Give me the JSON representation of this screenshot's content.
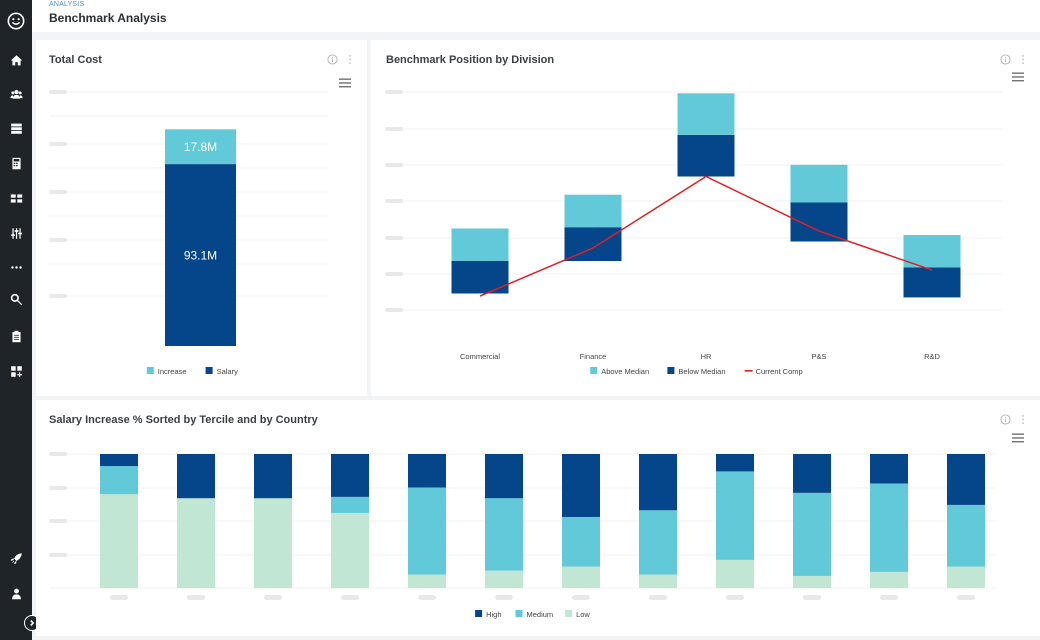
{
  "header": {
    "breadcrumb": "ANALYSIS",
    "title": "Benchmark Analysis"
  },
  "sidebar": {
    "items": [
      {
        "icon": "smiley-logo-icon"
      },
      {
        "icon": "home-icon"
      },
      {
        "icon": "people-icon"
      },
      {
        "icon": "server-icon"
      },
      {
        "icon": "calculator-icon"
      },
      {
        "icon": "grid-layout-icon"
      },
      {
        "icon": "sliders-icon"
      },
      {
        "icon": "more-dots-icon"
      },
      {
        "icon": "magnify-wrench-icon"
      },
      {
        "icon": "clipboard-icon"
      },
      {
        "icon": "dashboard-add-icon"
      },
      {
        "icon": "rocket-icon"
      },
      {
        "icon": "user-icon"
      }
    ]
  },
  "colors": {
    "salary": "#05468a",
    "increase": "#62c9d9",
    "low": "#c1e6d4",
    "line": "#e01f24"
  },
  "cards": {
    "total_cost": {
      "title": "Total Cost"
    },
    "benchmark": {
      "title": "Benchmark Position by Division"
    },
    "salary_increase": {
      "title": "Salary Increase % Sorted by Tercile and by Country"
    }
  },
  "chart_data": [
    {
      "id": "total_cost",
      "type": "bar",
      "title": "Total Cost",
      "categories": [
        ""
      ],
      "series": [
        {
          "name": "Salary",
          "values": [
            93.1
          ],
          "label": "93.1M",
          "color": "#05468a"
        },
        {
          "name": "Increase",
          "values": [
            17.8
          ],
          "label": "17.8M",
          "color": "#62c9d9"
        }
      ],
      "legend": [
        "Increase",
        "Salary"
      ],
      "ylim": [
        0,
        130
      ]
    },
    {
      "id": "benchmark",
      "type": "bar",
      "title": "Benchmark Position by Division",
      "categories": [
        "Commercial",
        "Finance",
        "HR",
        "P&S",
        "R&D"
      ],
      "series": [
        {
          "name": "Above Median",
          "color": "#62c9d9",
          "low": [
            0.0,
            0.26,
            0.97,
            0.45,
            -0.05
          ],
          "high": [
            0.25,
            0.51,
            1.29,
            0.74,
            0.2
          ]
        },
        {
          "name": "Below Median",
          "color": "#05468a",
          "low": [
            -0.25,
            -0.0,
            0.65,
            0.15,
            -0.28
          ],
          "high": [
            0.0,
            0.26,
            0.97,
            0.45,
            -0.05
          ]
        },
        {
          "name": "Current Comp",
          "type": "line",
          "color": "#e01f24",
          "values": [
            -0.27,
            0.1,
            0.65,
            0.23,
            -0.07
          ]
        }
      ],
      "legend": [
        "Above Median",
        "Below Median",
        "Current Comp"
      ],
      "ylim": [
        -0.4,
        1.3
      ]
    },
    {
      "id": "salary_increase",
      "type": "bar",
      "title": "Salary Increase % Sorted by Tercile and by Country",
      "stacked": true,
      "categories": [
        "",
        "",
        "",
        "",
        "",
        "",
        "",
        "",
        "",
        "",
        "",
        ""
      ],
      "series": [
        {
          "name": "Low",
          "color": "#c1e6d4",
          "values": [
            70,
            67,
            67,
            56,
            10,
            13,
            16,
            10,
            21,
            9,
            12,
            16
          ]
        },
        {
          "name": "Medium",
          "color": "#62c9d9",
          "values": [
            21,
            0,
            0,
            12,
            65,
            54,
            37,
            48,
            66,
            62,
            66,
            46
          ]
        },
        {
          "name": "High",
          "color": "#05468a",
          "values": [
            9,
            33,
            33,
            32,
            25,
            33,
            47,
            42,
            13,
            29,
            22,
            38
          ]
        }
      ],
      "legend": [
        "High",
        "Medium",
        "Low"
      ],
      "ylim": [
        0,
        100
      ]
    }
  ]
}
